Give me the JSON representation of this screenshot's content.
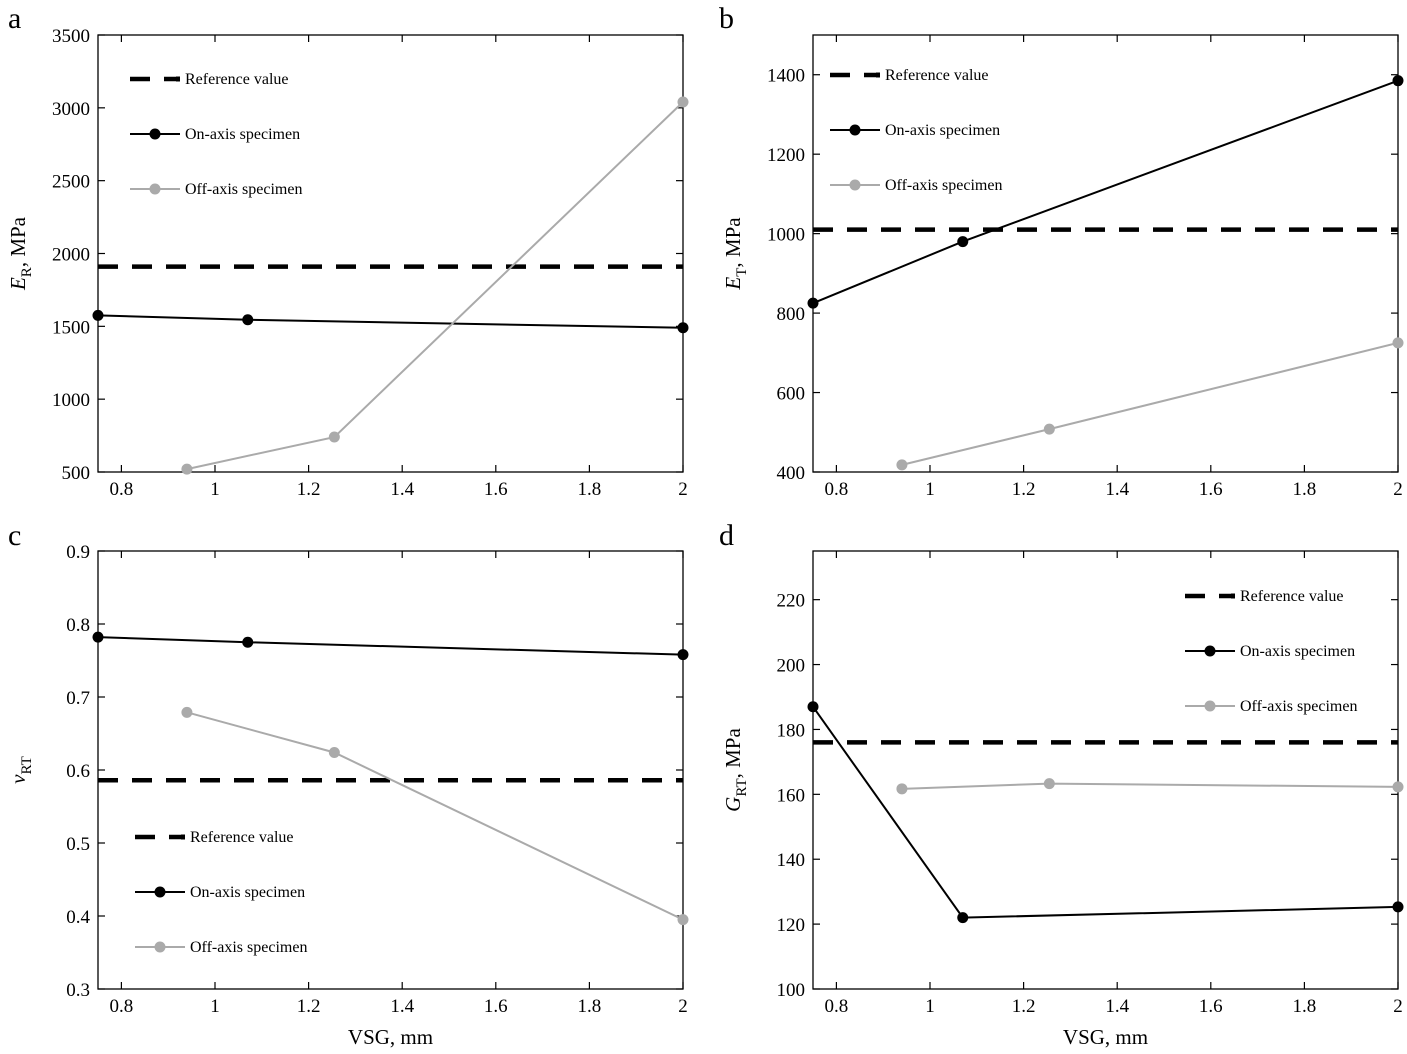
{
  "chart_data": [
    {
      "id": "a",
      "type": "line",
      "panel_label": "a",
      "ylabel": {
        "symbol": "E",
        "sub": "R",
        "unit": ", MPa"
      },
      "xlabel": "",
      "xlim": [
        0.75,
        2.0
      ],
      "ylim": [
        500,
        3500
      ],
      "xticks": [
        0.8,
        1,
        1.2,
        1.4,
        1.6,
        1.8,
        2
      ],
      "xtick_labels": [
        "0.8",
        "1",
        "1.2",
        "1.4",
        "1.6",
        "1.8",
        "2"
      ],
      "yticks": [
        500,
        1000,
        1500,
        2000,
        2500,
        3000,
        3500
      ],
      "ytick_labels": [
        "500",
        "1000",
        "1500",
        "2000",
        "2500",
        "3000",
        "3500"
      ],
      "legend_position": "top-left",
      "series": [
        {
          "name": "Reference value",
          "style": "dashed",
          "color": "#000000",
          "x": [
            0.75,
            2.0
          ],
          "y": [
            1910,
            1910
          ]
        },
        {
          "name": "On-axis specimen",
          "style": "solid-marker",
          "color": "#000000",
          "x": [
            0.75,
            1.07,
            2.0
          ],
          "y": [
            1575,
            1545,
            1490
          ]
        },
        {
          "name": "Off-axis specimen",
          "style": "solid-marker",
          "color": "#aaaaaa",
          "x": [
            0.94,
            1.255,
            2.0
          ],
          "y": [
            520,
            740,
            3040
          ]
        }
      ]
    },
    {
      "id": "b",
      "type": "line",
      "panel_label": "b",
      "ylabel": {
        "symbol": "E",
        "sub": "T",
        "unit": ", MPa"
      },
      "xlabel": "",
      "xlim": [
        0.75,
        2.0
      ],
      "ylim": [
        400,
        1500
      ],
      "xticks": [
        0.8,
        1,
        1.2,
        1.4,
        1.6,
        1.8,
        2
      ],
      "xtick_labels": [
        "0.8",
        "1",
        "1.2",
        "1.4",
        "1.6",
        "1.8",
        "2"
      ],
      "yticks": [
        400,
        600,
        800,
        1000,
        1200,
        1400
      ],
      "ytick_labels": [
        "400",
        "600",
        "800",
        "1000",
        "1200",
        "1400"
      ],
      "legend_position": "top-left",
      "series": [
        {
          "name": "Reference value",
          "style": "dashed",
          "color": "#000000",
          "x": [
            0.75,
            2.0
          ],
          "y": [
            1010,
            1010
          ]
        },
        {
          "name": "On-axis specimen",
          "style": "solid-marker",
          "color": "#000000",
          "x": [
            0.75,
            1.07,
            2.0
          ],
          "y": [
            825,
            980,
            1385
          ]
        },
        {
          "name": "Off-axis specimen",
          "style": "solid-marker",
          "color": "#aaaaaa",
          "x": [
            0.94,
            1.255,
            2.0
          ],
          "y": [
            418,
            508,
            725
          ]
        }
      ]
    },
    {
      "id": "c",
      "type": "line",
      "panel_label": "c",
      "ylabel": {
        "symbol": "ν",
        "sub": "RT",
        "unit": ""
      },
      "xlabel": "VSG, mm",
      "xlim": [
        0.75,
        2.0
      ],
      "ylim": [
        0.3,
        0.9
      ],
      "xticks": [
        0.8,
        1,
        1.2,
        1.4,
        1.6,
        1.8,
        2
      ],
      "xtick_labels": [
        "0.8",
        "1",
        "1.2",
        "1.4",
        "1.6",
        "1.8",
        "2"
      ],
      "yticks": [
        0.3,
        0.4,
        0.5,
        0.6,
        0.7,
        0.8,
        0.9
      ],
      "ytick_labels": [
        "0.3",
        "0.4",
        "0.5",
        "0.6",
        "0.7",
        "0.8",
        "0.9"
      ],
      "legend_position": "bottom-left",
      "series": [
        {
          "name": "Reference value",
          "style": "dashed",
          "color": "#000000",
          "x": [
            0.75,
            2.0
          ],
          "y": [
            0.586,
            0.586
          ]
        },
        {
          "name": "On-axis specimen",
          "style": "solid-marker",
          "color": "#000000",
          "x": [
            0.75,
            1.07,
            2.0
          ],
          "y": [
            0.782,
            0.775,
            0.758
          ]
        },
        {
          "name": "Off-axis specimen",
          "style": "solid-marker",
          "color": "#aaaaaa",
          "x": [
            0.94,
            1.255,
            2.0
          ],
          "y": [
            0.679,
            0.624,
            0.395
          ]
        }
      ]
    },
    {
      "id": "d",
      "type": "line",
      "panel_label": "d",
      "ylabel": {
        "symbol": "G",
        "sub": "RT",
        "unit": ", MPa"
      },
      "xlabel": "VSG, mm",
      "xlim": [
        0.75,
        2.0
      ],
      "ylim": [
        100,
        235
      ],
      "xticks": [
        0.8,
        1,
        1.2,
        1.4,
        1.6,
        1.8,
        2
      ],
      "xtick_labels": [
        "0.8",
        "1",
        "1.2",
        "1.4",
        "1.6",
        "1.8",
        "2"
      ],
      "yticks": [
        100,
        120,
        140,
        160,
        180,
        200,
        220
      ],
      "ytick_labels": [
        "100",
        "120",
        "140",
        "160",
        "180",
        "200",
        "220"
      ],
      "legend_position": "top-right",
      "series": [
        {
          "name": "Reference value",
          "style": "dashed",
          "color": "#000000",
          "x": [
            0.75,
            2.0
          ],
          "y": [
            176,
            176
          ]
        },
        {
          "name": "On-axis specimen",
          "style": "solid-marker",
          "color": "#000000",
          "x": [
            0.75,
            1.07,
            2.0
          ],
          "y": [
            187,
            122,
            125.3
          ]
        },
        {
          "name": "Off-axis specimen",
          "style": "solid-marker",
          "color": "#aaaaaa",
          "x": [
            0.94,
            1.255,
            2.0
          ],
          "y": [
            161.7,
            163.3,
            162.3
          ]
        }
      ]
    }
  ]
}
